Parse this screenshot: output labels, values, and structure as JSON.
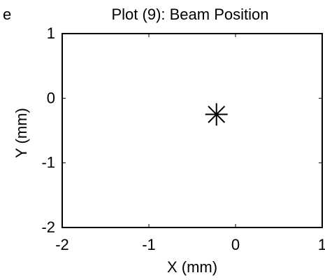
{
  "figure": {
    "left_fragment": "e"
  },
  "chart_data": {
    "type": "scatter",
    "title": "Plot (9): Beam Position",
    "xlabel": "X (mm)",
    "ylabel": "Y (mm)",
    "xlim": [
      -2,
      1
    ],
    "ylim": [
      -2,
      1
    ],
    "xticks": [
      -2,
      -1,
      0,
      1
    ],
    "yticks": [
      -2,
      -1,
      0,
      1
    ],
    "xtick_labels": [
      "-2",
      "-1",
      "0",
      "1"
    ],
    "ytick_labels": [
      "-2",
      "-1",
      "0",
      "1"
    ],
    "grid": false,
    "series": [
      {
        "marker": "asterisk",
        "color": "#000000",
        "points": [
          {
            "x": -0.22,
            "y": -0.25
          }
        ]
      }
    ]
  }
}
